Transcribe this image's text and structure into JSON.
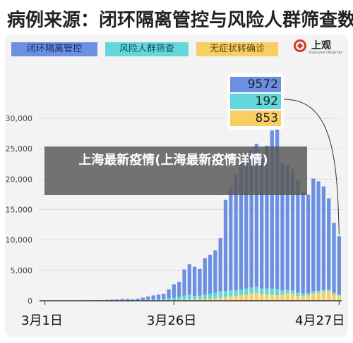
{
  "title": "病例来源：闭环隔离管控与风险人群筛查数",
  "legend": [
    "闭环隔离管控",
    "风险人群筛查",
    "无症状转确诊"
  ],
  "logo": {
    "name": "上观",
    "sub": "Shanghai Observer"
  },
  "callout": {
    "values": [
      "9572",
      "192",
      "853"
    ]
  },
  "banner": "上海最新疫情(上海最新疫情详情)",
  "colors": {
    "closed_loop": "#6a8fe3",
    "screening": "#63d8dc",
    "asymptomatic": "#f7cf63"
  },
  "chart_data": {
    "type": "bar",
    "stacked": true,
    "x_tick_labels": [
      "3月1日",
      "3月26日",
      "4月27日"
    ],
    "y_tick_labels": [
      "0",
      "5,000",
      "10,000",
      "15,000",
      "20,000",
      "25,000",
      "30,000"
    ],
    "ylim": [
      0,
      30000
    ],
    "categories": [
      "3/1",
      "3/2",
      "3/3",
      "3/4",
      "3/5",
      "3/6",
      "3/7",
      "3/8",
      "3/9",
      "3/10",
      "3/11",
      "3/12",
      "3/13",
      "3/14",
      "3/15",
      "3/16",
      "3/17",
      "3/18",
      "3/19",
      "3/20",
      "3/21",
      "3/22",
      "3/23",
      "3/24",
      "3/25",
      "3/26",
      "3/27",
      "3/28",
      "3/29",
      "3/30",
      "3/31",
      "4/1",
      "4/2",
      "4/3",
      "4/4",
      "4/5",
      "4/6",
      "4/7",
      "4/8",
      "4/9",
      "4/10",
      "4/11",
      "4/12",
      "4/13",
      "4/14",
      "4/15",
      "4/16",
      "4/17",
      "4/18",
      "4/19",
      "4/20",
      "4/21",
      "4/22",
      "4/23",
      "4/24",
      "4/25",
      "4/26",
      "4/27"
    ],
    "series": [
      {
        "name": "闭环隔离管控",
        "values": [
          2,
          2,
          3,
          8,
          40,
          60,
          45,
          50,
          60,
          60,
          70,
          70,
          100,
          120,
          140,
          200,
          220,
          160,
          250,
          400,
          550,
          700,
          800,
          900,
          1500,
          2200,
          2500,
          4300,
          5000,
          4800,
          4400,
          6000,
          6400,
          7000,
          8700,
          15000,
          17000,
          19000,
          21000,
          21600,
          22500,
          23500,
          21500,
          23500,
          26000,
          27000,
          21000,
          20500,
          20000,
          18500,
          16600,
          16200,
          18500,
          18000,
          17000,
          15000,
          11500,
          9572
        ]
      },
      {
        "name": "风险人群筛查",
        "values": [
          0,
          0,
          0,
          2,
          5,
          8,
          5,
          5,
          10,
          10,
          10,
          15,
          30,
          40,
          50,
          60,
          70,
          60,
          80,
          100,
          120,
          150,
          180,
          200,
          300,
          400,
          500,
          700,
          800,
          600,
          600,
          700,
          800,
          900,
          1100,
          1000,
          1000,
          900,
          900,
          1000,
          1000,
          1000,
          900,
          1000,
          1000,
          1000,
          700,
          600,
          600,
          500,
          400,
          350,
          400,
          350,
          300,
          250,
          200,
          192
        ]
      },
      {
        "name": "无症状转确诊",
        "values": [
          0,
          0,
          0,
          0,
          0,
          1,
          2,
          3,
          2,
          3,
          3,
          5,
          5,
          8,
          10,
          12,
          15,
          12,
          15,
          20,
          25,
          30,
          40,
          50,
          80,
          100,
          120,
          150,
          200,
          200,
          250,
          300,
          350,
          400,
          500,
          600,
          700,
          800,
          900,
          1000,
          1200,
          1300,
          1100,
          1000,
          1000,
          900,
          1000,
          1200,
          1100,
          800,
          800,
          900,
          1200,
          1300,
          1500,
          1600,
          1100,
          853
        ]
      }
    ]
  }
}
